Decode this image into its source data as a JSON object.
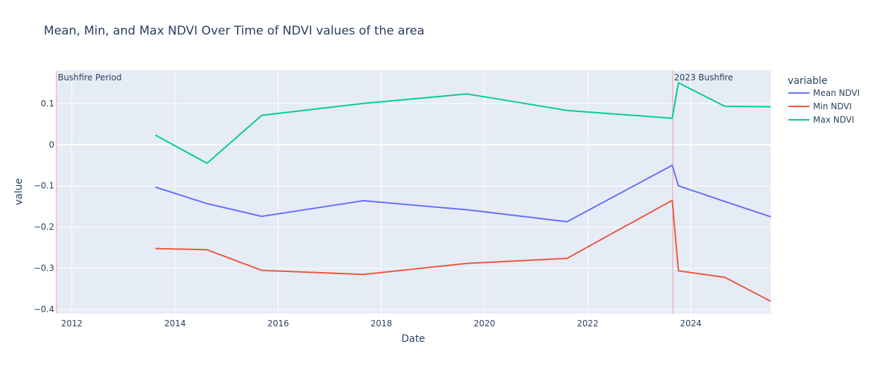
{
  "chart_data": {
    "type": "line",
    "title": "Mean, Min, and Max NDVI Over Time of NDVI values of the area",
    "xlabel": "Date",
    "ylabel": "value",
    "xlim": [
      2011.7,
      2025.55
    ],
    "ylim": [
      -0.41,
      0.18
    ],
    "x_ticks": [
      2012,
      2014,
      2016,
      2018,
      2020,
      2022,
      2024
    ],
    "y_ticks": [
      0.1,
      0,
      -0.1,
      -0.2,
      -0.3,
      -0.4
    ],
    "y_tick_labels": [
      "0.1",
      "0",
      "−0.1",
      "−0.2",
      "−0.3",
      "−0.4"
    ],
    "grid": true,
    "legend": {
      "title": "variable",
      "position": "right"
    },
    "x": [
      2013.62,
      2014.62,
      2015.68,
      2017.65,
      2019.66,
      2021.6,
      2023.64,
      2023.76,
      2024.66,
      2025.55
    ],
    "series": [
      {
        "name": "Mean NDVI",
        "color": "#636efa",
        "values": [
          -0.103,
          -0.143,
          -0.174,
          -0.136,
          -0.158,
          -0.187,
          -0.05,
          -0.1,
          -0.138,
          -0.175
        ]
      },
      {
        "name": "Min NDVI",
        "color": "#ef553b",
        "values": [
          -0.252,
          -0.255,
          -0.305,
          -0.315,
          -0.288,
          -0.276,
          -0.135,
          -0.306,
          -0.322,
          -0.38
        ]
      },
      {
        "name": "Max NDVI",
        "color": "#00cc96",
        "values": [
          0.023,
          -0.045,
          0.071,
          0.1,
          0.123,
          0.083,
          0.064,
          0.15,
          0.093,
          0.092
        ]
      }
    ],
    "annotations": [
      {
        "text": "Bushfire Period",
        "x": 2011.7
      },
      {
        "text": "2023 Bushfire",
        "x": 2023.65
      }
    ]
  }
}
